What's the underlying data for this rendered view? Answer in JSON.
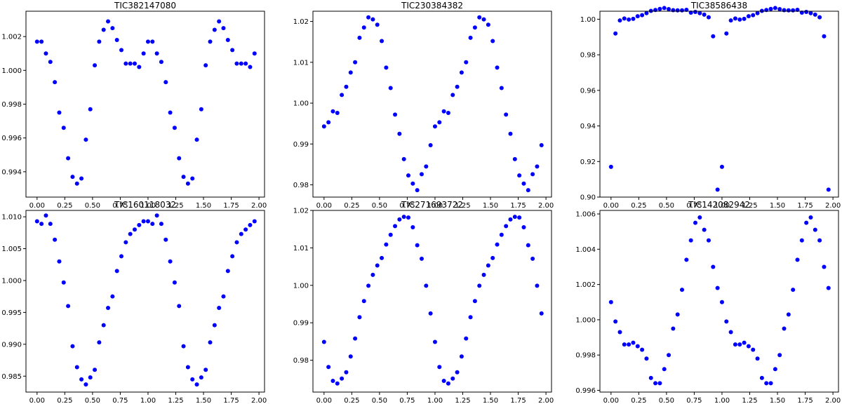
{
  "chart_data": [
    {
      "type": "scatter",
      "title": "TIC382147080",
      "color": "#0000ff",
      "xlim": [
        -0.1,
        2.05
      ],
      "ylim": [
        0.9925,
        1.0035
      ],
      "xticks": [
        0.0,
        0.25,
        0.5,
        0.75,
        1.0,
        1.25,
        1.5,
        1.75,
        2.0
      ],
      "xtick_labels": [
        "0.00",
        "0.25",
        "0.50",
        "0.75",
        "1.00",
        "1.25",
        "1.50",
        "1.75",
        "2.00"
      ],
      "yticks": [
        0.994,
        0.996,
        0.998,
        1.0,
        1.002
      ],
      "ytick_labels": [
        "0.994",
        "0.996",
        "0.998",
        "1.000",
        "1.002"
      ],
      "x": [
        0.0,
        0.04,
        0.08,
        0.12,
        0.16,
        0.2,
        0.24,
        0.28,
        0.32,
        0.36,
        0.4,
        0.44,
        0.48,
        0.52,
        0.56,
        0.6,
        0.64,
        0.68,
        0.72,
        0.76,
        0.8,
        0.84,
        0.88,
        0.92,
        0.96,
        1.0,
        1.04,
        1.08,
        1.12,
        1.16,
        1.2,
        1.24,
        1.28,
        1.32,
        1.36,
        1.4,
        1.44,
        1.48,
        1.52,
        1.56,
        1.6,
        1.64,
        1.68,
        1.72,
        1.76,
        1.8,
        1.84,
        1.88,
        1.92,
        1.96
      ],
      "y": [
        1.0017,
        1.0017,
        1.001,
        1.0005,
        0.9993,
        0.9975,
        0.9966,
        0.9948,
        0.9937,
        0.9933,
        0.9936,
        0.9959,
        0.9977,
        1.0003,
        1.0017,
        1.0024,
        1.0029,
        1.0025,
        1.0018,
        1.0012,
        1.0004,
        1.0004,
        1.0004,
        1.0002,
        1.001,
        1.0017,
        1.0017,
        1.001,
        1.0005,
        0.9993,
        0.9975,
        0.9966,
        0.9948,
        0.9937,
        0.9933,
        0.9936,
        0.9959,
        0.9977,
        1.0003,
        1.0017,
        1.0024,
        1.0029,
        1.0025,
        1.0018,
        1.0012,
        1.0004,
        1.0004,
        1.0004,
        1.0002,
        1.001
      ]
    },
    {
      "type": "scatter",
      "title": "TIC230384382",
      "color": "#0000ff",
      "xlim": [
        -0.1,
        2.05
      ],
      "ylim": [
        0.977,
        1.0225
      ],
      "xticks": [
        0.0,
        0.25,
        0.5,
        0.75,
        1.0,
        1.25,
        1.5,
        1.75,
        2.0
      ],
      "xtick_labels": [
        "0.00",
        "0.25",
        "0.50",
        "0.75",
        "1.00",
        "1.25",
        "1.50",
        "1.75",
        "2.00"
      ],
      "yticks": [
        0.98,
        0.99,
        1.0,
        1.01,
        1.02
      ],
      "ytick_labels": [
        "0.98",
        "0.99",
        "1.00",
        "1.01",
        "1.02"
      ],
      "x": [
        0.0,
        0.04,
        0.08,
        0.12,
        0.16,
        0.2,
        0.24,
        0.28,
        0.32,
        0.36,
        0.4,
        0.44,
        0.48,
        0.52,
        0.56,
        0.6,
        0.64,
        0.68,
        0.72,
        0.76,
        0.8,
        0.84,
        0.88,
        0.92,
        0.96,
        1.0,
        1.04,
        1.08,
        1.12,
        1.16,
        1.2,
        1.24,
        1.28,
        1.32,
        1.36,
        1.4,
        1.44,
        1.48,
        1.52,
        1.56,
        1.6,
        1.64,
        1.68,
        1.72,
        1.76,
        1.8,
        1.84,
        1.88,
        1.92,
        1.96
      ],
      "y": [
        0.9943,
        0.9953,
        0.998,
        0.9976,
        1.002,
        1.004,
        1.0075,
        1.01,
        1.016,
        1.0185,
        1.021,
        1.0205,
        1.0192,
        1.0152,
        1.0087,
        1.0037,
        0.9972,
        0.9925,
        0.9863,
        0.9823,
        0.9803,
        0.9787,
        0.9826,
        0.9845,
        0.9897,
        0.9943,
        0.9953,
        0.998,
        0.9976,
        1.002,
        1.004,
        1.0075,
        1.01,
        1.016,
        1.0185,
        1.021,
        1.0205,
        1.0192,
        1.0152,
        1.0087,
        1.0037,
        0.9972,
        0.9925,
        0.9863,
        0.9823,
        0.9803,
        0.9787,
        0.9826,
        0.9845,
        0.9897
      ]
    },
    {
      "type": "scatter",
      "title": "TIC38586438",
      "color": "#0000ff",
      "xlim": [
        -0.1,
        2.05
      ],
      "ylim": [
        0.9,
        1.0045
      ],
      "xticks": [
        0.0,
        0.25,
        0.5,
        0.75,
        1.0,
        1.25,
        1.5,
        1.75,
        2.0
      ],
      "xtick_labels": [
        "0.00",
        "0.25",
        "0.50",
        "0.75",
        "1.00",
        "1.25",
        "1.50",
        "1.75",
        "2.00"
      ],
      "yticks": [
        0.9,
        0.92,
        0.94,
        0.96,
        0.98,
        1.0
      ],
      "ytick_labels": [
        "0.90",
        "0.92",
        "0.94",
        "0.96",
        "0.98",
        "1.00"
      ],
      "x": [
        0.0,
        0.04,
        0.08,
        0.12,
        0.16,
        0.2,
        0.24,
        0.28,
        0.32,
        0.36,
        0.4,
        0.44,
        0.48,
        0.52,
        0.56,
        0.6,
        0.64,
        0.68,
        0.72,
        0.76,
        0.8,
        0.84,
        0.88,
        0.92,
        0.96,
        1.0,
        1.04,
        1.08,
        1.12,
        1.16,
        1.2,
        1.24,
        1.28,
        1.32,
        1.36,
        1.4,
        1.44,
        1.48,
        1.52,
        1.56,
        1.6,
        1.64,
        1.68,
        1.72,
        1.76,
        1.8,
        1.84,
        1.88,
        1.92,
        1.96
      ],
      "y": [
        0.917,
        0.992,
        0.9993,
        1.0004,
        0.9998,
        1.0002,
        1.0017,
        1.0023,
        1.0034,
        1.0047,
        1.0052,
        1.0058,
        1.0063,
        1.0057,
        1.0051,
        1.005,
        1.005,
        1.0053,
        1.0037,
        1.0041,
        1.0034,
        1.0026,
        1.0011,
        0.9904,
        0.9042,
        0.917,
        0.992,
        0.9993,
        1.0004,
        0.9998,
        1.0002,
        1.0017,
        1.0023,
        1.0034,
        1.0047,
        1.0052,
        1.0058,
        1.0063,
        1.0057,
        1.0051,
        1.005,
        1.005,
        1.0053,
        1.0037,
        1.0041,
        1.0034,
        1.0026,
        1.0011,
        0.9904,
        0.9042
      ]
    },
    {
      "type": "scatter",
      "title": "TIC160118032",
      "color": "#0000ff",
      "xlim": [
        -0.1,
        2.05
      ],
      "ylim": [
        0.9825,
        1.011
      ],
      "xticks": [
        0.0,
        0.25,
        0.5,
        0.75,
        1.0,
        1.25,
        1.5,
        1.75,
        2.0
      ],
      "xtick_labels": [
        "0.00",
        "0.25",
        "0.50",
        "0.75",
        "1.00",
        "1.25",
        "1.50",
        "1.75",
        "2.00"
      ],
      "yticks": [
        0.985,
        0.99,
        0.995,
        1.0,
        1.005,
        1.01
      ],
      "ytick_labels": [
        "0.985",
        "0.990",
        "0.995",
        "1.000",
        "1.005",
        "1.010"
      ],
      "x": [
        0.0,
        0.04,
        0.08,
        0.12,
        0.16,
        0.2,
        0.24,
        0.28,
        0.32,
        0.36,
        0.4,
        0.44,
        0.48,
        0.52,
        0.56,
        0.6,
        0.64,
        0.68,
        0.72,
        0.76,
        0.8,
        0.84,
        0.88,
        0.92,
        0.96,
        1.0,
        1.04,
        1.08,
        1.12,
        1.16,
        1.2,
        1.24,
        1.28,
        1.32,
        1.36,
        1.4,
        1.44,
        1.48,
        1.52,
        1.56,
        1.6,
        1.64,
        1.68,
        1.72,
        1.76,
        1.8,
        1.84,
        1.88,
        1.92,
        1.96
      ],
      "y": [
        1.0093,
        1.0089,
        1.0102,
        1.0089,
        1.0064,
        1.003,
        0.9997,
        0.996,
        0.9897,
        0.9864,
        0.9845,
        0.9837,
        0.9848,
        0.986,
        0.9903,
        0.993,
        0.9957,
        0.9975,
        1.0015,
        1.0038,
        1.006,
        1.0073,
        1.008,
        1.0087,
        1.0093,
        1.0093,
        1.0089,
        1.0102,
        1.0089,
        1.0064,
        1.003,
        0.9997,
        0.996,
        0.9897,
        0.9864,
        0.9845,
        0.9837,
        0.9848,
        0.986,
        0.9903,
        0.993,
        0.9957,
        0.9975,
        1.0015,
        1.0038,
        1.006,
        1.0073,
        1.008,
        1.0087,
        1.0093
      ]
    },
    {
      "type": "scatter",
      "title": "TIC271693722",
      "color": "#0000ff",
      "xlim": [
        -0.1,
        2.05
      ],
      "ylim": [
        0.9715,
        1.02
      ],
      "xticks": [
        0.0,
        0.25,
        0.5,
        0.75,
        1.0,
        1.25,
        1.5,
        1.75,
        2.0
      ],
      "xtick_labels": [
        "0.00",
        "0.25",
        "0.50",
        "0.75",
        "1.00",
        "1.25",
        "1.50",
        "1.75",
        "2.00"
      ],
      "yticks": [
        0.98,
        0.99,
        1.0,
        1.01,
        1.02
      ],
      "ytick_labels": [
        "0.98",
        "0.99",
        "1.00",
        "1.01",
        "1.02"
      ],
      "x": [
        0.0,
        0.04,
        0.08,
        0.12,
        0.16,
        0.2,
        0.24,
        0.28,
        0.32,
        0.36,
        0.4,
        0.44,
        0.48,
        0.52,
        0.56,
        0.6,
        0.64,
        0.68,
        0.72,
        0.76,
        0.8,
        0.84,
        0.88,
        0.92,
        0.96,
        1.0,
        1.04,
        1.08,
        1.12,
        1.16,
        1.2,
        1.24,
        1.28,
        1.32,
        1.36,
        1.4,
        1.44,
        1.48,
        1.52,
        1.56,
        1.6,
        1.64,
        1.68,
        1.72,
        1.76,
        1.8,
        1.84,
        1.88,
        1.92,
        1.96
      ],
      "y": [
        0.9849,
        0.9782,
        0.9745,
        0.9738,
        0.9751,
        0.9768,
        0.981,
        0.9858,
        0.9915,
        0.9958,
        0.9999,
        1.0028,
        1.0053,
        1.0073,
        1.0109,
        1.0135,
        1.0158,
        1.0176,
        1.0183,
        1.0181,
        1.0155,
        1.0107,
        1.0071,
        0.9999,
        0.9925,
        0.9849,
        0.9782,
        0.9745,
        0.9738,
        0.9751,
        0.9768,
        0.981,
        0.9858,
        0.9915,
        0.9958,
        0.9999,
        1.0028,
        1.0053,
        1.0073,
        1.0109,
        1.0135,
        1.0158,
        1.0176,
        1.0183,
        1.0181,
        1.0155,
        1.0107,
        1.0071,
        0.9999,
        0.9925
      ]
    },
    {
      "type": "scatter",
      "title": "TIC142082942",
      "color": "#0000ff",
      "xlim": [
        -0.1,
        2.05
      ],
      "ylim": [
        0.9959,
        1.0062
      ],
      "xticks": [
        0.0,
        0.25,
        0.5,
        0.75,
        1.0,
        1.25,
        1.5,
        1.75,
        2.0
      ],
      "xtick_labels": [
        "0.00",
        "0.25",
        "0.50",
        "0.75",
        "1.00",
        "1.25",
        "1.50",
        "1.75",
        "2.00"
      ],
      "yticks": [
        0.996,
        0.998,
        1.0,
        1.002,
        1.004,
        1.006
      ],
      "ytick_labels": [
        "0.996",
        "0.998",
        "1.000",
        "1.002",
        "1.004",
        "1.006"
      ],
      "x": [
        0.0,
        0.04,
        0.08,
        0.12,
        0.16,
        0.2,
        0.24,
        0.28,
        0.32,
        0.36,
        0.4,
        0.44,
        0.48,
        0.52,
        0.56,
        0.6,
        0.64,
        0.68,
        0.72,
        0.76,
        0.8,
        0.84,
        0.88,
        0.92,
        0.96,
        1.0,
        1.04,
        1.08,
        1.12,
        1.16,
        1.2,
        1.24,
        1.28,
        1.32,
        1.36,
        1.4,
        1.44,
        1.48,
        1.52,
        1.56,
        1.6,
        1.64,
        1.68,
        1.72,
        1.76,
        1.8,
        1.84,
        1.88,
        1.92,
        1.96
      ],
      "y": [
        1.001,
        0.9999,
        0.9993,
        0.9986,
        0.9986,
        0.9987,
        0.9985,
        0.9983,
        0.9978,
        0.9967,
        0.9964,
        0.9964,
        0.9972,
        0.998,
        0.9995,
        1.0003,
        1.0017,
        1.0034,
        1.0045,
        1.0055,
        1.0058,
        1.0051,
        1.0045,
        1.003,
        1.0018,
        1.001,
        0.9999,
        0.9993,
        0.9986,
        0.9986,
        0.9987,
        0.9985,
        0.9983,
        0.9978,
        0.9967,
        0.9964,
        0.9964,
        0.9972,
        0.998,
        0.9995,
        1.0003,
        1.0017,
        1.0034,
        1.0045,
        1.0055,
        1.0058,
        1.0051,
        1.0045,
        1.003,
        1.0018
      ]
    }
  ]
}
